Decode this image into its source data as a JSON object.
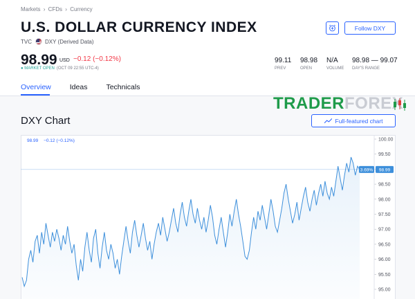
{
  "breadcrumb": [
    "Markets",
    "›",
    "CFDs",
    "›",
    "Currency"
  ],
  "header": {
    "title": "U.S. DOLLAR CURRENCY INDEX",
    "exchange": "TVC",
    "symbol": "DXY (Derived Data)",
    "follow_label": "Follow DXY",
    "alert_icon": "alarm-plus-icon"
  },
  "quote": {
    "price": "98.99",
    "currency": "USD",
    "change": "−0.12 (−0.12%)",
    "status": "MARKET OPEN",
    "time": "(OCT 09 22:55 UTC-4)"
  },
  "stats": [
    {
      "value": "99.11",
      "label": "PREV"
    },
    {
      "value": "98.98",
      "label": "OPEN"
    },
    {
      "value": "N/A",
      "label": "VOLUME"
    },
    {
      "value": "98.98 — 99.07",
      "label": "DAY'S RANGE"
    }
  ],
  "tabs": [
    "Overview",
    "Ideas",
    "Technicals"
  ],
  "chart_section": {
    "title": "DXY Chart",
    "full_label": "Full-featured chart",
    "legend_price": "98.99",
    "legend_change": "−0.12 (−0.12%)"
  },
  "watermark": {
    "part1": "TRADER",
    "part2": "FOREX"
  },
  "colors": {
    "accent": "#2962ff",
    "down": "#f23645",
    "up": "#26a69a",
    "line": "#3d8fdb"
  },
  "chart_data": {
    "type": "area",
    "ylim": [
      94.8,
      100.0
    ],
    "yticks": [
      "100.00",
      "99.50",
      "99.00",
      "98.50",
      "98.00",
      "97.50",
      "97.00",
      "96.50",
      "96.00",
      "95.50",
      "95.00"
    ],
    "ytick_values": [
      100.0,
      99.5,
      99.0,
      98.5,
      98.0,
      97.5,
      97.0,
      96.5,
      96.0,
      95.5,
      95.0
    ],
    "last_value": 98.99,
    "last_label": "98.99",
    "pct_label": "3.69%",
    "values": [
      95.4,
      95.1,
      95.3,
      96.0,
      96.3,
      95.9,
      96.6,
      96.8,
      96.2,
      96.9,
      96.5,
      97.2,
      96.8,
      96.4,
      96.9,
      96.6,
      97.0,
      96.7,
      96.3,
      96.8,
      96.5,
      97.1,
      96.6,
      96.2,
      96.5,
      95.8,
      95.3,
      96.0,
      95.6,
      96.4,
      96.9,
      96.3,
      95.9,
      96.7,
      97.0,
      96.2,
      95.7,
      96.4,
      96.9,
      96.3,
      96.0,
      96.5,
      96.2,
      95.7,
      96.0,
      95.5,
      96.1,
      96.6,
      97.1,
      96.6,
      96.2,
      96.9,
      97.3,
      96.8,
      96.4,
      96.8,
      97.2,
      96.7,
      96.3,
      96.6,
      96.0,
      96.5,
      96.9,
      97.2,
      96.8,
      97.4,
      97.0,
      96.6,
      96.9,
      97.3,
      97.7,
      97.2,
      96.9,
      97.5,
      97.9,
      97.4,
      97.1,
      97.6,
      98.0,
      97.5,
      97.2,
      97.7,
      97.3,
      97.0,
      97.4,
      96.9,
      97.3,
      97.8,
      97.4,
      96.8,
      96.5,
      97.0,
      97.4,
      96.9,
      96.4,
      96.9,
      97.5,
      97.1,
      97.6,
      98.0,
      97.5,
      97.1,
      96.6,
      96.1,
      96.0,
      96.3,
      96.9,
      97.4,
      97.0,
      97.6,
      97.3,
      97.8,
      97.4,
      97.0,
      97.5,
      98.0,
      97.6,
      97.1,
      96.9,
      97.3,
      97.7,
      98.2,
      98.5,
      98.0,
      97.6,
      97.2,
      97.5,
      97.9,
      97.3,
      97.7,
      98.1,
      98.4,
      97.9,
      97.6,
      98.0,
      98.3,
      97.8,
      98.2,
      98.5,
      98.1,
      98.6,
      98.2,
      98.0,
      98.4,
      98.1,
      98.6,
      99.1,
      98.7,
      98.3,
      98.8,
      99.2,
      98.9,
      99.4,
      99.2,
      98.8,
      99.1,
      98.99
    ]
  }
}
